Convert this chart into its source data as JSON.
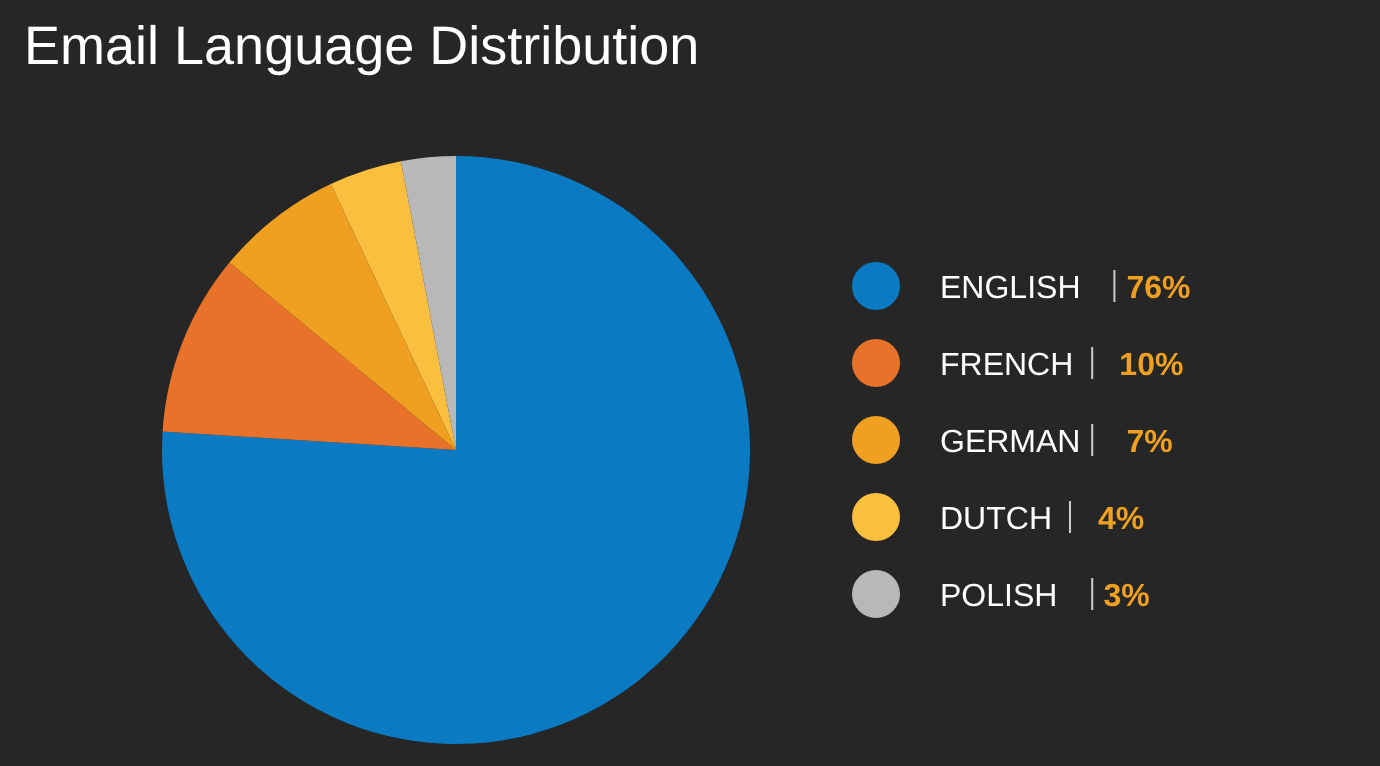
{
  "chart_data": {
    "type": "pie",
    "title": "Email Language Distribution",
    "categories": [
      "ENGLISH",
      "FRENCH",
      "GERMAN",
      "DUTCH",
      "POLISH"
    ],
    "values": [
      76,
      10,
      7,
      4,
      3
    ],
    "value_labels": [
      "76%",
      "10%",
      "7%",
      "4%",
      "3%"
    ],
    "colors": [
      "#0a7bc2",
      "#e8722a",
      "#f0a020",
      "#fbbf40",
      "#b8b8b8"
    ],
    "legend": "right"
  }
}
